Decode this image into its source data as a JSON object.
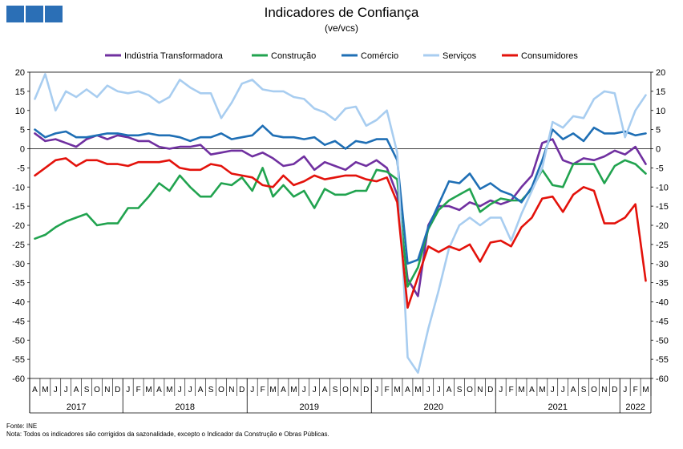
{
  "logo_icons": [
    "square-icon",
    "square-icon",
    "square-icon"
  ],
  "chart_data": {
    "type": "line",
    "title": "Indicadores de Confiança",
    "subtitle": "(ve/vcs)",
    "x": [
      "A",
      "M",
      "J",
      "J",
      "A",
      "S",
      "O",
      "N",
      "D",
      "J",
      "F",
      "M",
      "A",
      "M",
      "J",
      "J",
      "A",
      "S",
      "O",
      "N",
      "D",
      "J",
      "F",
      "M",
      "A",
      "M",
      "J",
      "J",
      "A",
      "S",
      "O",
      "N",
      "D",
      "J",
      "F",
      "M",
      "A",
      "M",
      "J",
      "J",
      "A",
      "S",
      "O",
      "N",
      "D",
      "J",
      "F",
      "M",
      "A",
      "M",
      "J",
      "J",
      "A",
      "S",
      "O",
      "N",
      "D",
      "J",
      "F",
      "M"
    ],
    "years": [
      {
        "label": "2017",
        "from": 0,
        "to": 8
      },
      {
        "label": "2018",
        "from": 9,
        "to": 20
      },
      {
        "label": "2019",
        "from": 21,
        "to": 32
      },
      {
        "label": "2020",
        "from": 33,
        "to": 44
      },
      {
        "label": "2021",
        "from": 45,
        "to": 56
      },
      {
        "label": "2022",
        "from": 57,
        "to": 59
      }
    ],
    "ylim": [
      -60,
      20
    ],
    "yticks": [
      20,
      15,
      10,
      5,
      0,
      -5,
      -10,
      -15,
      -20,
      -25,
      -30,
      -35,
      -40,
      -45,
      -50,
      -55,
      -60
    ],
    "legend_position": "top",
    "series": [
      {
        "name": "Indústria Transformadora",
        "color": "#7030a0",
        "values": [
          4.0,
          2.0,
          2.5,
          1.5,
          0.5,
          2.5,
          3.5,
          2.5,
          3.5,
          3.0,
          2.0,
          2.0,
          0.5,
          0.0,
          0.5,
          0.5,
          1.0,
          -1.5,
          -1.0,
          -0.5,
          -0.5,
          -2.0,
          -1.0,
          -2.5,
          -4.5,
          -4.0,
          -2.0,
          -5.5,
          -3.5,
          -4.5,
          -5.5,
          -3.5,
          -4.5,
          -3.0,
          -5.0,
          -12.0,
          -34.0,
          -38.5,
          -20.0,
          -15.0,
          -15.0,
          -16.0,
          -14.0,
          -15.0,
          -13.5,
          -14.5,
          -13.5,
          -10.0,
          -7.0,
          1.5,
          2.5,
          -3.0,
          -4.0,
          -2.5,
          -3.0,
          -2.0,
          -0.5,
          -1.5,
          0.5,
          -4.0
        ]
      },
      {
        "name": "Construção",
        "color": "#21a34f",
        "values": [
          -23.5,
          -22.5,
          -20.5,
          -19.0,
          -18.0,
          -17.0,
          -20.0,
          -19.5,
          -19.5,
          -15.5,
          -15.5,
          -12.5,
          -9.0,
          -11.0,
          -7.0,
          -10.0,
          -12.5,
          -12.5,
          -9.0,
          -9.5,
          -7.5,
          -11.0,
          -5.0,
          -12.5,
          -9.5,
          -12.5,
          -11.0,
          -15.5,
          -10.5,
          -12.0,
          -12.0,
          -11.0,
          -11.0,
          -5.5,
          -6.0,
          -8.0,
          -36.0,
          -31.0,
          -21.0,
          -16.0,
          -13.5,
          -12.0,
          -10.5,
          -16.5,
          -14.5,
          -13.0,
          -13.5,
          -13.5,
          -10.5,
          -5.5,
          -9.5,
          -10.0,
          -4.0,
          -4.0,
          -4.0,
          -9.0,
          -4.5,
          -3.0,
          -4.0,
          -6.5
        ]
      },
      {
        "name": "Comércio",
        "color": "#1f6fb5",
        "values": [
          5.0,
          3.0,
          4.0,
          4.5,
          3.0,
          3.0,
          3.5,
          4.0,
          4.0,
          3.5,
          3.5,
          4.0,
          3.5,
          3.5,
          3.0,
          2.0,
          3.0,
          3.0,
          4.0,
          2.5,
          3.0,
          3.5,
          6.0,
          3.5,
          3.0,
          3.0,
          2.5,
          3.0,
          1.0,
          2.0,
          0.0,
          2.0,
          1.5,
          2.5,
          2.5,
          -3.0,
          -30.0,
          -29.0,
          -20.5,
          -14.5,
          -8.5,
          -9.0,
          -6.5,
          -10.5,
          -9.0,
          -11.0,
          -12.0,
          -14.0,
          -10.0,
          -3.0,
          5.0,
          2.5,
          4.0,
          2.0,
          5.5,
          4.0,
          4.0,
          4.5,
          3.5,
          4.0
        ]
      },
      {
        "name": "Serviços",
        "color": "#a8cdf0",
        "values": [
          13.0,
          19.5,
          10.0,
          15.0,
          13.5,
          15.5,
          13.5,
          16.5,
          15.0,
          14.5,
          15.0,
          14.0,
          12.0,
          13.5,
          18.0,
          16.0,
          14.5,
          14.5,
          8.0,
          12.0,
          17.0,
          18.0,
          15.5,
          15.0,
          15.0,
          13.5,
          13.0,
          10.5,
          9.5,
          7.5,
          10.5,
          11.0,
          6.0,
          7.5,
          10.0,
          -1.0,
          -54.5,
          -58.5,
          -47.0,
          -37.0,
          -26.0,
          -20.0,
          -18.0,
          -20.0,
          -18.0,
          -18.0,
          -24.0,
          -17.0,
          -11.0,
          -5.0,
          7.0,
          5.5,
          8.5,
          8.0,
          13.0,
          15.0,
          14.5,
          3.0,
          10.0,
          14.0
        ]
      },
      {
        "name": "Consumidores",
        "color": "#e3120b",
        "values": [
          -7.0,
          -5.0,
          -3.0,
          -2.5,
          -4.5,
          -3.0,
          -3.0,
          -4.0,
          -4.0,
          -4.5,
          -3.5,
          -3.5,
          -3.5,
          -3.0,
          -5.0,
          -5.5,
          -5.5,
          -4.0,
          -4.5,
          -6.5,
          -7.0,
          -7.5,
          -9.5,
          -10.0,
          -7.0,
          -9.5,
          -8.5,
          -7.0,
          -8.0,
          -7.5,
          -7.0,
          -7.0,
          -8.0,
          -8.5,
          -7.5,
          -14.0,
          -41.5,
          -33.5,
          -25.5,
          -27.0,
          -25.5,
          -26.5,
          -25.0,
          -29.5,
          -24.5,
          -24.0,
          -25.5,
          -20.5,
          -18.0,
          -13.0,
          -12.5,
          -16.5,
          -12.0,
          -10.0,
          -11.0,
          -19.5,
          -19.5,
          -18.0,
          -14.5,
          -34.5
        ]
      }
    ]
  },
  "footnotes": {
    "source": "Fonte: INE",
    "note": "Nota: Todos os indicadores são corrigidos da sazonalidade, excepto o Indicador da Construção e Obras Públicas."
  }
}
